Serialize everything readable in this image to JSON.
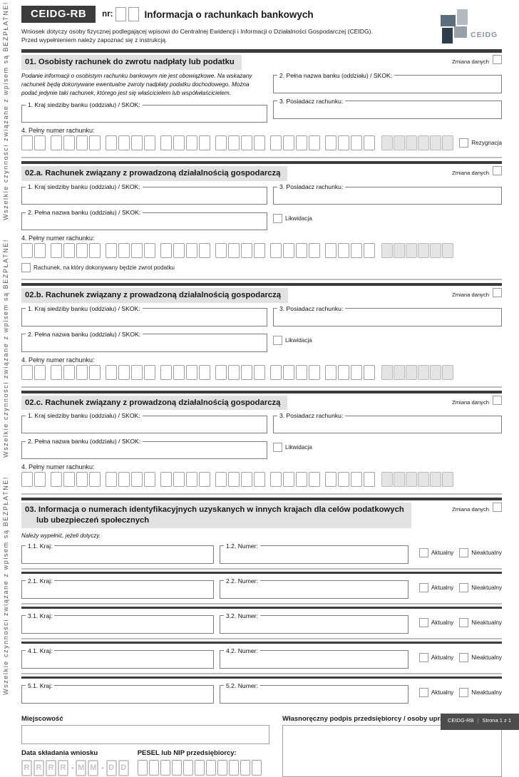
{
  "sidebar": {
    "watermark": "Wszelkie czynności związane z wpisem są BEZPŁATNE!"
  },
  "header": {
    "form_code": "CEIDG-RB",
    "nr_label": "nr:",
    "title": "Informacja o rachunkach bankowych",
    "subtitle_line1": "Wniosek dotyczy osoby fizycznej podlegającej wpisowi do Centralnej Ewidencji i Informacji o Działalności Gospodarczej (CEIDG).",
    "subtitle_line2": "Przed wypełnieniem należy zapoznać się z instrukcją.",
    "logo_text": "CEIDG"
  },
  "labels": {
    "zmiana_danych": "Zmiana danych",
    "rezygnacja": "Rezygnacja",
    "likwidacja": "Likwidacja",
    "aktualny": "Aktualny",
    "nieaktualny": "Nieaktualny",
    "zwrot_podatku": "Rachunek, na który dokonywany będzie zwrot podatku"
  },
  "field_labels": {
    "kraj": "1. Kraj siedziby banku (oddziału) / SKOK:",
    "nazwa": "2. Pełna nazwa banku (oddziału) / SKOK:",
    "posiadacz": "3. Posiadacz rachunku:",
    "numer": "4. Pełny numer rachunku:"
  },
  "section01": {
    "title": "01. Osobisty rachunek do zwrotu nadpłaty lub podatku",
    "note": "Podanie informacji o osobistym rachunku bankowym nie jest obowiązkowe. Na wskazany rachunek będą dokonywane ewentualne zwroty nadpłaty podatku dochodowego. Można podać jedynie taki rachunek, którego jest się właścicielem lub współwłaścicielem."
  },
  "sections02": {
    "a": {
      "title": "02.a. Rachunek związany z prowadzoną działalnością gospodarczą"
    },
    "b": {
      "title": "02.b. Rachunek związany z prowadzoną działalnością gospodarczą"
    },
    "c": {
      "title": "02.c. Rachunek związany z prowadzoną działalnością gospodarczą"
    }
  },
  "section03": {
    "title_line1": "03. Informacja o numerach identyfikacyjnych uzyskanych w innych krajach dla celów podatkowych",
    "title_line2": "lub ubezpieczeń społecznych",
    "note": "Należy wypełnić, jeżeli dotyczy.",
    "rows": [
      {
        "kraj": "1.1. Kraj:",
        "numer": "1.2. Numer:"
      },
      {
        "kraj": "2.1. Kraj:",
        "numer": "2.2. Numer:"
      },
      {
        "kraj": "3.1. Kraj:",
        "numer": "3.2. Numer:"
      },
      {
        "kraj": "4.1. Kraj:",
        "numer": "4.2. Numer:"
      },
      {
        "kraj": "5.1. Kraj:",
        "numer": "5.2. Numer:"
      }
    ]
  },
  "bottom": {
    "miejscowosc": "Miejscowość",
    "data_label": "Data składania wniosku",
    "pesel_label": "PESEL lub NIP przedsiębiorcy:",
    "podpis": "Własnoręczny podpis przedsiębiorcy / osoby uprawnionej"
  },
  "footer": {
    "code": "CEIDG-RB",
    "page": "Strona 1 z 1"
  },
  "boxes": {
    "account": {
      "groups": [
        2,
        4,
        4,
        4,
        4,
        4,
        4
      ],
      "gray": 6
    },
    "date": {
      "groups": [
        4,
        2,
        2
      ],
      "letters": [
        "R",
        "R",
        "R",
        "R",
        "M",
        "M",
        "D",
        "D"
      ],
      "dashes": true
    },
    "pesel": {
      "groups": [
        11
      ]
    }
  },
  "colors": {
    "accent_dark": "#3b3b3b",
    "section_band": "#e1e1e1",
    "gray_cell": "#e4e4e4",
    "logo_slate": "#5c6d7e",
    "logo_light": "#b5babf",
    "logo_navy": "#2e3d4c",
    "logo_gray": "#99a1a8",
    "footer_bg": "#4c4c4c"
  }
}
